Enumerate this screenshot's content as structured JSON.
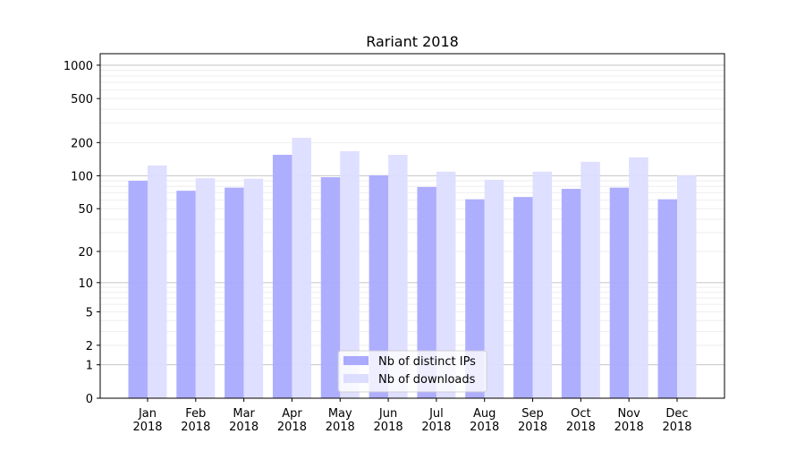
{
  "chart_data": {
    "type": "bar",
    "title": "Rariant 2018",
    "xlabel": "",
    "ylabel": "",
    "yscale": "log10(y+1)",
    "ylim": [
      0,
      1270
    ],
    "yticks": [
      0,
      1,
      2,
      5,
      10,
      20,
      50,
      100,
      200,
      500,
      1000
    ],
    "grid": true,
    "legend_position": "bottom-center",
    "categories": [
      "Jan\n2018",
      "Feb\n2018",
      "Mar\n2018",
      "Apr\n2018",
      "May\n2018",
      "Jun\n2018",
      "Jul\n2018",
      "Aug\n2018",
      "Sep\n2018",
      "Oct\n2018",
      "Nov\n2018",
      "Dec\n2018"
    ],
    "series": [
      {
        "name": "Nb of distinct IPs",
        "color": "#aaaaff",
        "values": [
          90,
          73,
          78,
          155,
          97,
          101,
          79,
          61,
          64,
          76,
          78,
          61
        ]
      },
      {
        "name": "Nb of downloads",
        "color": "#ddddff",
        "values": [
          124,
          95,
          94,
          221,
          167,
          155,
          109,
          92,
          109,
          134,
          147,
          101
        ]
      }
    ]
  }
}
